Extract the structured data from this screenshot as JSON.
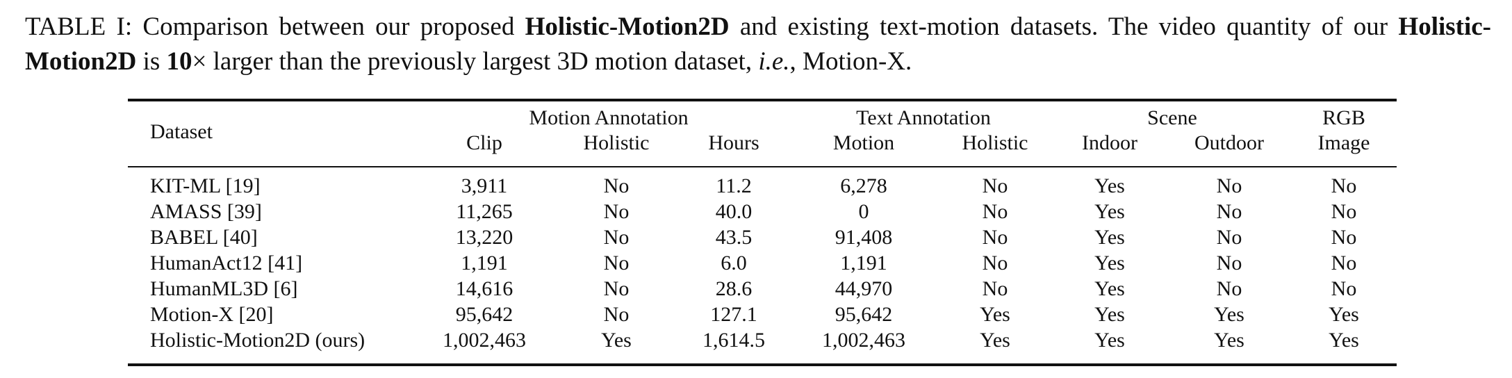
{
  "caption": {
    "prefix": "TABLE I: Comparison between our proposed ",
    "name1": "Holistic-Motion2D",
    "mid1": " and existing text-motion datasets. The video quantity of our ",
    "name2": "Holistic-Motion2D",
    "mid2": " is ",
    "factor": "10",
    "times": "×",
    "mid3": " larger than the previously largest 3D motion dataset, ",
    "ie": "i.e.",
    "suffix": ", Motion-X."
  },
  "table": {
    "headers": {
      "dataset": "Dataset",
      "motion_annotation": "Motion Annotation",
      "text_annotation": "Text Annotation",
      "scene": "Scene",
      "rgb_line1": "RGB",
      "rgb_line2": "Image",
      "clip": "Clip",
      "holistic": "Holistic",
      "hours": "Hours",
      "motion": "Motion",
      "text_holistic": "Holistic",
      "indoor": "Indoor",
      "outdoor": "Outdoor"
    },
    "rows": [
      {
        "dataset": "KIT-ML [19]",
        "clip": "3,911",
        "holistic": "No",
        "hours": "11.2",
        "motion": "6,278",
        "text_holistic": "No",
        "indoor": "Yes",
        "outdoor": "No",
        "rgb": "No"
      },
      {
        "dataset": "AMASS [39]",
        "clip": "11,265",
        "holistic": "No",
        "hours": "40.0",
        "motion": "0",
        "text_holistic": "No",
        "indoor": "Yes",
        "outdoor": "No",
        "rgb": "No"
      },
      {
        "dataset": "BABEL [40]",
        "clip": "13,220",
        "holistic": "No",
        "hours": "43.5",
        "motion": "91,408",
        "text_holistic": "No",
        "indoor": "Yes",
        "outdoor": "No",
        "rgb": "No"
      },
      {
        "dataset": "HumanAct12 [41]",
        "clip": "1,191",
        "holistic": "No",
        "hours": "6.0",
        "motion": "1,191",
        "text_holistic": "No",
        "indoor": "Yes",
        "outdoor": "No",
        "rgb": "No"
      },
      {
        "dataset": "HumanML3D [6]",
        "clip": "14,616",
        "holistic": "No",
        "hours": "28.6",
        "motion": "44,970",
        "text_holistic": "No",
        "indoor": "Yes",
        "outdoor": "No",
        "rgb": "No"
      },
      {
        "dataset": "Motion-X [20]",
        "clip": "95,642",
        "holistic": "No",
        "hours": "127.1",
        "motion": "95,642",
        "text_holistic": "Yes",
        "indoor": "Yes",
        "outdoor": "Yes",
        "rgb": "Yes"
      },
      {
        "dataset": "Holistic-Motion2D (ours)",
        "clip": "1,002,463",
        "holistic": "Yes",
        "hours": "1,614.5",
        "motion": "1,002,463",
        "text_holistic": "Yes",
        "indoor": "Yes",
        "outdoor": "Yes",
        "rgb": "Yes"
      }
    ]
  }
}
